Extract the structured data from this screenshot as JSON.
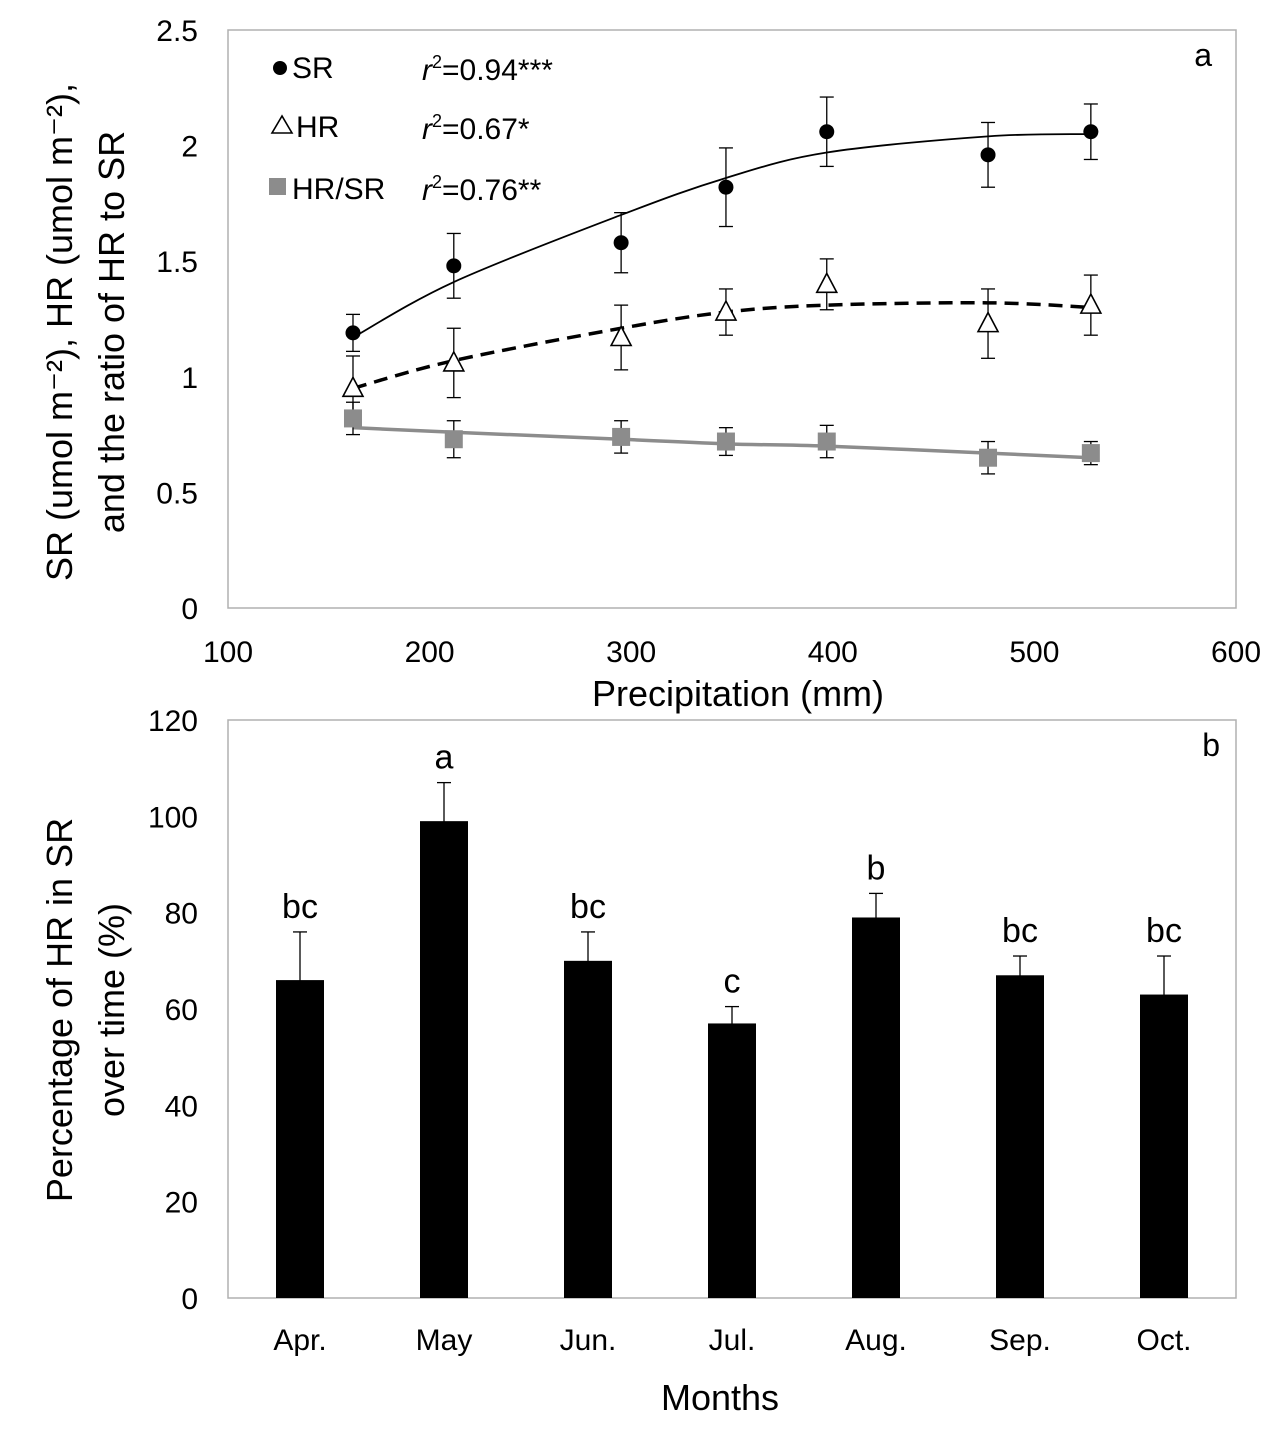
{
  "chart_data": [
    {
      "panel_label": "a",
      "type": "scatter",
      "xlabel": "Precipitation (mm)",
      "ylabel_lines": [
        "SR (umol m⁻²), HR (umol m⁻²),",
        "and the ratio of HR to SR"
      ],
      "xlim": [
        100,
        600
      ],
      "ylim": [
        0,
        2.5
      ],
      "x_ticks": [
        100,
        200,
        300,
        400,
        500,
        600
      ],
      "y_ticks": [
        0,
        0.5,
        1,
        1.5,
        2,
        2.5
      ],
      "y_tick_labels": [
        "0",
        "0.5",
        "1",
        "1.5",
        "2",
        "2.5"
      ],
      "grid": false,
      "legend_position": "top-left",
      "x": [
        162,
        212,
        295,
        347,
        397,
        477,
        528
      ],
      "series": [
        {
          "name": "SR",
          "legend_label": "SR",
          "r2_label": "=0.94***",
          "marker": "circle",
          "marker_color": "#000000",
          "line_style": "solid",
          "line_color": "#000000",
          "values": [
            1.19,
            1.48,
            1.58,
            1.82,
            2.06,
            1.96,
            2.06
          ],
          "errors": [
            0.08,
            0.14,
            0.13,
            0.17,
            0.15,
            0.14,
            0.12
          ],
          "fit": [
            1.17,
            1.41,
            1.7,
            1.86,
            1.97,
            2.04,
            2.05
          ]
        },
        {
          "name": "HR",
          "legend_label": "HR",
          "r2_label": "=0.67*",
          "marker": "triangle-open",
          "marker_color": "#000000",
          "line_style": "dashed",
          "line_color": "#000000",
          "values": [
            0.95,
            1.06,
            1.17,
            1.28,
            1.4,
            1.23,
            1.31
          ],
          "errors": [
            0.14,
            0.15,
            0.14,
            0.1,
            0.11,
            0.15,
            0.13
          ],
          "fit": [
            0.95,
            1.07,
            1.21,
            1.28,
            1.31,
            1.32,
            1.3
          ]
        },
        {
          "name": "HR/SR",
          "legend_label": "HR/SR",
          "r2_label": "=0.76**",
          "marker": "square",
          "marker_color": "#8c8c8c",
          "line_style": "solid",
          "line_color": "#8c8c8c",
          "values": [
            0.82,
            0.73,
            0.74,
            0.72,
            0.72,
            0.65,
            0.67
          ],
          "errors": [
            0.07,
            0.08,
            0.07,
            0.06,
            0.07,
            0.07,
            0.05
          ],
          "fit": [
            0.78,
            0.76,
            0.73,
            0.71,
            0.7,
            0.67,
            0.65
          ]
        }
      ]
    },
    {
      "panel_label": "b",
      "type": "bar",
      "xlabel": "Months",
      "ylabel_lines": [
        "Percentage of HR in SR",
        "over time (%)"
      ],
      "ylim": [
        0,
        120
      ],
      "y_ticks": [
        0,
        20,
        40,
        60,
        80,
        100,
        120
      ],
      "grid": false,
      "bar_color": "#000000",
      "categories": [
        "Apr.",
        "May",
        "Jun.",
        "Jul.",
        "Aug.",
        "Sep.",
        "Oct."
      ],
      "values": [
        66,
        99,
        70,
        57,
        79,
        67,
        63
      ],
      "errors": [
        10,
        8,
        6,
        3.5,
        5,
        4,
        8
      ],
      "letters": [
        "bc",
        "a",
        "bc",
        "c",
        "b",
        "bc",
        "bc"
      ]
    }
  ]
}
